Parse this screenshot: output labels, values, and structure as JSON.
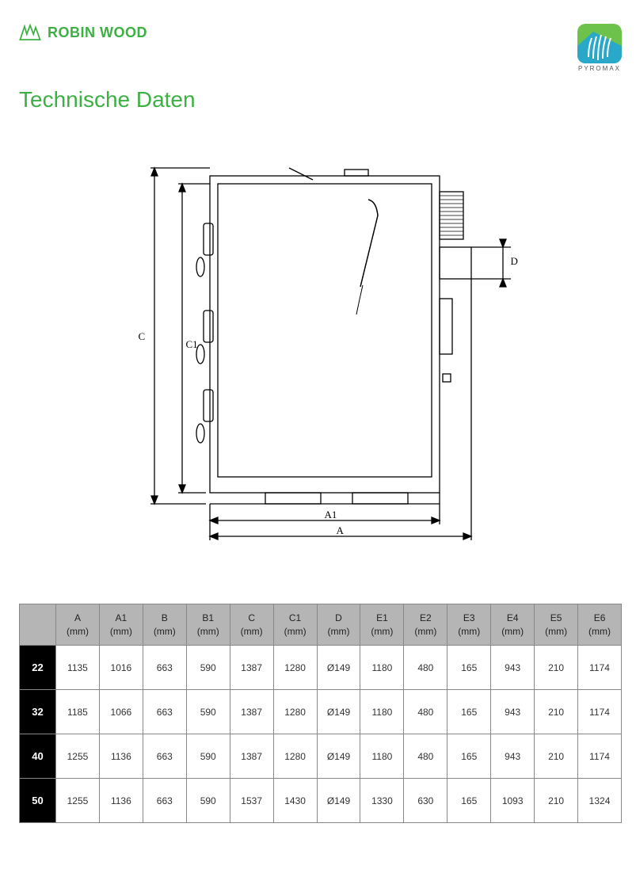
{
  "header": {
    "brand_left": "ROBIN WOOD",
    "brand_right": "PYROMAX",
    "brand_left_color": "#3cb043",
    "badge_top_color": "#6dc24b",
    "badge_bottom_color": "#2aa8c9"
  },
  "title": "Technische Daten",
  "diagram": {
    "labels": {
      "C": "C",
      "C1": "C1",
      "A": "A",
      "A1": "A1",
      "D": "D"
    },
    "stroke": "#000000"
  },
  "table": {
    "columns": [
      {
        "label": "A",
        "unit": "(mm)"
      },
      {
        "label": "A1",
        "unit": "(mm)"
      },
      {
        "label": "B",
        "unit": "(mm)"
      },
      {
        "label": "B1",
        "unit": "(mm)"
      },
      {
        "label": "C",
        "unit": "(mm)"
      },
      {
        "label": "C1",
        "unit": "(mm)"
      },
      {
        "label": "D",
        "unit": "(mm)"
      },
      {
        "label": "E1",
        "unit": "(mm)"
      },
      {
        "label": "E2",
        "unit": "(mm)"
      },
      {
        "label": "E3",
        "unit": "(mm)"
      },
      {
        "label": "E4",
        "unit": "(mm)"
      },
      {
        "label": "E5",
        "unit": "(mm)"
      },
      {
        "label": "E6",
        "unit": "(mm)"
      }
    ],
    "rows": [
      {
        "head": "22",
        "cells": [
          "1135",
          "1016",
          "663",
          "590",
          "1387",
          "1280",
          "Ø149",
          "1180",
          "480",
          "165",
          "943",
          "210",
          "1174"
        ]
      },
      {
        "head": "32",
        "cells": [
          "1185",
          "1066",
          "663",
          "590",
          "1387",
          "1280",
          "Ø149",
          "1180",
          "480",
          "165",
          "943",
          "210",
          "1174"
        ]
      },
      {
        "head": "40",
        "cells": [
          "1255",
          "1136",
          "663",
          "590",
          "1387",
          "1280",
          "Ø149",
          "1180",
          "480",
          "165",
          "943",
          "210",
          "1174"
        ]
      },
      {
        "head": "50",
        "cells": [
          "1255",
          "1136",
          "663",
          "590",
          "1537",
          "1430",
          "Ø149",
          "1330",
          "630",
          "165",
          "1093",
          "210",
          "1324"
        ]
      }
    ],
    "header_bg": "#b5b5b5",
    "rowhead_bg": "#000000",
    "rowhead_fg": "#ffffff",
    "border_color": "#888888"
  }
}
